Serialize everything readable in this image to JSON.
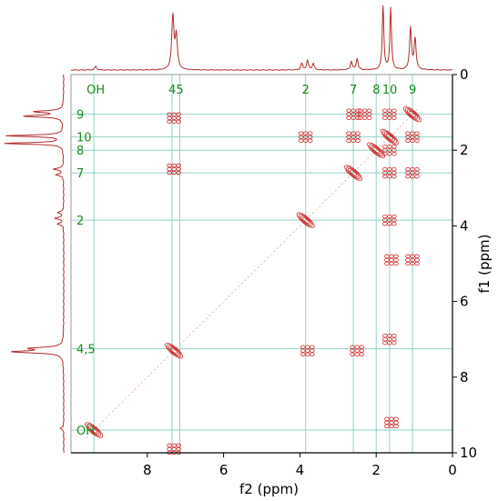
{
  "chart_data": {
    "type": "heatmap",
    "subtype": "2D COSY NMR contour plot",
    "xlabel": "f2 (ppm)",
    "ylabel": "f1 (ppm)",
    "xlim": [
      10,
      0
    ],
    "ylim": [
      0,
      10
    ],
    "x_ticks": [
      8,
      6,
      4,
      2,
      0
    ],
    "y_ticks": [
      0,
      2,
      4,
      6,
      8,
      10
    ],
    "grid": false,
    "colors": {
      "contour": "#cc2a2a",
      "spectrum": "#b52b2b",
      "guide_lines": "#8fd3c7",
      "assignment_text": "#1a8a1a",
      "axes": "#000000"
    },
    "assignments": [
      {
        "label": "OH",
        "ppm": 9.4
      },
      {
        "label": "4",
        "ppm": 7.35
      },
      {
        "label": "5",
        "ppm": 7.15
      },
      {
        "label": "2",
        "ppm": 3.85
      },
      {
        "label": "7",
        "ppm": 2.6
      },
      {
        "label": "8",
        "ppm": 2.0
      },
      {
        "label": "10",
        "ppm": 1.65
      },
      {
        "label": "9",
        "ppm": 1.05
      }
    ],
    "row_labels": [
      {
        "label": "9",
        "ppm": 1.05
      },
      {
        "label": "10",
        "ppm": 1.65
      },
      {
        "label": "8",
        "ppm": 2.0
      },
      {
        "label": "7",
        "ppm": 2.6
      },
      {
        "label": "2",
        "ppm": 3.85
      },
      {
        "label": "4,5",
        "ppm": 7.25
      },
      {
        "label": "OH",
        "ppm": 9.4
      }
    ],
    "cross_peaks": [
      {
        "f2": 1.05,
        "f1": 1.05,
        "kind": "diagonal"
      },
      {
        "f2": 1.65,
        "f1": 1.65,
        "kind": "diagonal"
      },
      {
        "f2": 2.0,
        "f1": 2.0,
        "kind": "diagonal"
      },
      {
        "f2": 2.6,
        "f1": 2.6,
        "kind": "diagonal"
      },
      {
        "f2": 3.85,
        "f1": 3.85,
        "kind": "diagonal"
      },
      {
        "f2": 7.3,
        "f1": 7.3,
        "kind": "diagonal"
      },
      {
        "f2": 9.4,
        "f1": 9.4,
        "kind": "diagonal"
      },
      {
        "f2": 3.85,
        "f1": 1.65,
        "kind": "cross"
      },
      {
        "f2": 1.65,
        "f1": 3.85,
        "kind": "cross"
      },
      {
        "f2": 2.6,
        "f1": 1.05,
        "kind": "cross"
      },
      {
        "f2": 1.05,
        "f1": 2.6,
        "kind": "cross"
      },
      {
        "f2": 2.6,
        "f1": 1.65,
        "kind": "cross"
      },
      {
        "f2": 1.65,
        "f1": 2.6,
        "kind": "cross"
      },
      {
        "f2": 2.3,
        "f1": 1.05,
        "kind": "cross"
      },
      {
        "f2": 1.65,
        "f1": 1.05,
        "kind": "cross"
      },
      {
        "f2": 1.05,
        "f1": 1.65,
        "kind": "cross"
      },
      {
        "f2": 1.65,
        "f1": 2.0,
        "kind": "cross"
      },
      {
        "f2": 7.3,
        "f1": 2.5,
        "kind": "cross"
      },
      {
        "f2": 7.3,
        "f1": 1.15,
        "kind": "cross"
      },
      {
        "f2": 2.5,
        "f1": 7.3,
        "kind": "cross"
      },
      {
        "f2": 3.8,
        "f1": 7.3,
        "kind": "cross"
      },
      {
        "f2": 1.05,
        "f1": 4.9,
        "kind": "cross"
      },
      {
        "f2": 1.6,
        "f1": 4.9,
        "kind": "cross"
      },
      {
        "f2": 1.6,
        "f1": 9.2,
        "kind": "cross"
      },
      {
        "f2": 1.65,
        "f1": 7.0,
        "kind": "cross"
      },
      {
        "f2": 7.3,
        "f1": 9.9,
        "kind": "cross"
      }
    ]
  }
}
